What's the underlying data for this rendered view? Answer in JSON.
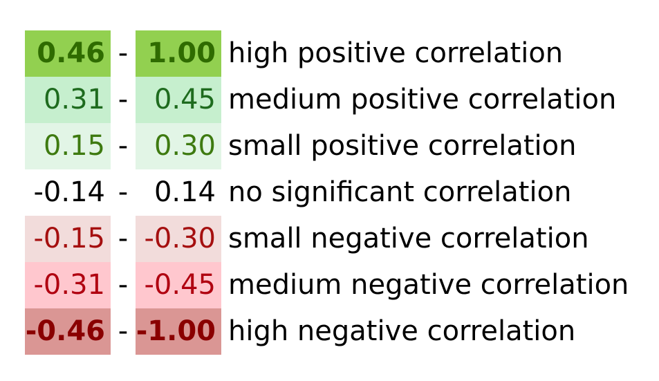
{
  "rows": [
    {
      "low": "0.46",
      "dash": "-",
      "high": "1.00",
      "label": "high positive correlation",
      "bg": "#92d050",
      "color": "#2f6b00",
      "bold": true
    },
    {
      "low": "0.31",
      "dash": "-",
      "high": "0.45",
      "label": "medium positive correlation",
      "bg": "#c6efce",
      "color": "#1e6b1e",
      "bold": false
    },
    {
      "low": "0.15",
      "dash": "-",
      "high": "0.30",
      "label": "small positive correlation",
      "bg": "#e2f5e6",
      "color": "#3e7a10",
      "bold": false
    },
    {
      "low": "-0.14",
      "dash": "-",
      "high": "0.14",
      "label": "no significant correlation",
      "bg": "#ffffff",
      "color": "#000000",
      "bold": false
    },
    {
      "low": "-0.15",
      "dash": "-",
      "high": "-0.30",
      "label": "small negative correlation",
      "bg": "#f2dcdb",
      "color": "#a50f0f",
      "bold": false
    },
    {
      "low": "-0.31",
      "dash": "-",
      "high": "-0.45",
      "label": "medium negative correlation",
      "bg": "#ffc7ce",
      "color": "#b00010",
      "bold": false
    },
    {
      "low": "-0.46",
      "dash": "-",
      "high": "-1.00",
      "label": "high negative correlation",
      "bg": "#da9694",
      "color": "#8a0000",
      "bold": true
    }
  ]
}
